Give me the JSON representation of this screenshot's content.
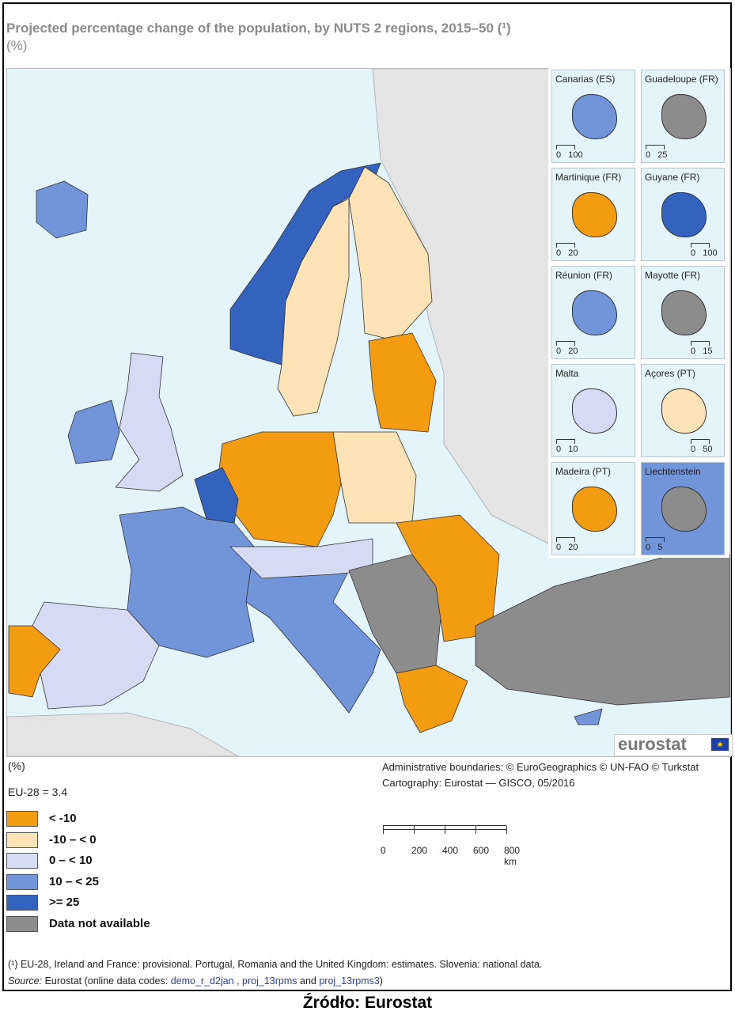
{
  "title": "Projected percentage change of the population, by NUTS 2 regions, 2015–50 (¹)",
  "subtitle": "(%)",
  "colors": {
    "lt_minus10": "#f39c12",
    "minus10_0": "#fde3b6",
    "0_10": "#d5dbf3",
    "10_25": "#7195d8",
    "ge25": "#3462bf",
    "na": "#8c8c8c",
    "sea": "#e3f4fb",
    "non_eu": "#e4e4e4"
  },
  "map_regions": [
    {
      "name": "Iceland",
      "class": "10_25"
    },
    {
      "name": "Ireland",
      "class": "10_25"
    },
    {
      "name": "United Kingdom",
      "class": "0_10"
    },
    {
      "name": "Norway",
      "class": "ge25"
    },
    {
      "name": "Sweden",
      "class": "minus10_0"
    },
    {
      "name": "Finland",
      "class": "minus10_0"
    },
    {
      "name": "Baltic states",
      "class": "lt_minus10"
    },
    {
      "name": "Poland",
      "class": "minus10_0"
    },
    {
      "name": "Germany",
      "class": "lt_minus10"
    },
    {
      "name": "Benelux",
      "class": "ge25"
    },
    {
      "name": "France",
      "class": "10_25"
    },
    {
      "name": "Spain",
      "class": "0_10"
    },
    {
      "name": "Portugal",
      "class": "lt_minus10"
    },
    {
      "name": "Italy",
      "class": "10_25"
    },
    {
      "name": "Austria / Switzerland",
      "class": "0_10"
    },
    {
      "name": "Western Balkans",
      "class": "na"
    },
    {
      "name": "Romania / Bulgaria",
      "class": "lt_minus10"
    },
    {
      "name": "Greece",
      "class": "lt_minus10"
    },
    {
      "name": "Turkey",
      "class": "na"
    },
    {
      "name": "Cyprus",
      "class": "10_25"
    }
  ],
  "insets": [
    {
      "label": "Canarias (ES)",
      "scale": [
        "0",
        "100"
      ],
      "class": "10_25"
    },
    {
      "label": "Guadeloupe (FR)",
      "scale": [
        "0",
        "25"
      ],
      "class": "na"
    },
    {
      "label": "Martinique (FR)",
      "scale": [
        "0",
        "20"
      ],
      "class": "lt_minus10"
    },
    {
      "label": "Guyane (FR)",
      "scale": [
        "0",
        "100"
      ],
      "class": "ge25"
    },
    {
      "label": "Réunion (FR)",
      "scale": [
        "0",
        "20"
      ],
      "class": "10_25"
    },
    {
      "label": "Mayotte (FR)",
      "scale": [
        "0",
        "15"
      ],
      "class": "na"
    },
    {
      "label": "Malta",
      "scale": [
        "0",
        "10"
      ],
      "class": "0_10"
    },
    {
      "label": "Açores (PT)",
      "scale": [
        "0",
        "50"
      ],
      "class": "minus10_0"
    },
    {
      "label": "Madeira (PT)",
      "scale": [
        "0",
        "20"
      ],
      "class": "lt_minus10"
    },
    {
      "label": "Liechtenstein",
      "scale": [
        "0",
        "5"
      ],
      "class": "na"
    }
  ],
  "logo": "eurostat",
  "legend": {
    "unit": "(%)",
    "eu_value": "EU-28 = 3.4",
    "items": [
      {
        "label": "< -10",
        "class": "lt_minus10"
      },
      {
        "label": "-10 – < 0",
        "class": "minus10_0"
      },
      {
        "label": "0 – < 10",
        "class": "0_10"
      },
      {
        "label": "10 – < 25",
        "class": "10_25"
      },
      {
        "label": ">= 25",
        "class": "ge25"
      },
      {
        "label": "Data not available",
        "class": "na"
      }
    ]
  },
  "credits": {
    "line1": "Administrative boundaries: © EuroGeographics © UN-FAO © Turkstat",
    "line2": "Cartography: Eurostat — GISCO, 05/2016"
  },
  "scale_bar": {
    "labels": [
      "0",
      "200",
      "400",
      "600",
      "800 km"
    ]
  },
  "footnote": "(¹) EU-28, Ireland and France: provisional. Portugal, Romania and the United Kingdom: estimates. Slovenia: national data.",
  "source": {
    "label": "Source:",
    "text": " Eurostat (online data codes: ",
    "code1": "demo_r_d2jan",
    "sep1": " , ",
    "code2": "proj_13rpms",
    "sep2": " and ",
    "code3": "proj_13rpms3",
    "end": ")"
  },
  "caption": "Źródło: Eurostat"
}
